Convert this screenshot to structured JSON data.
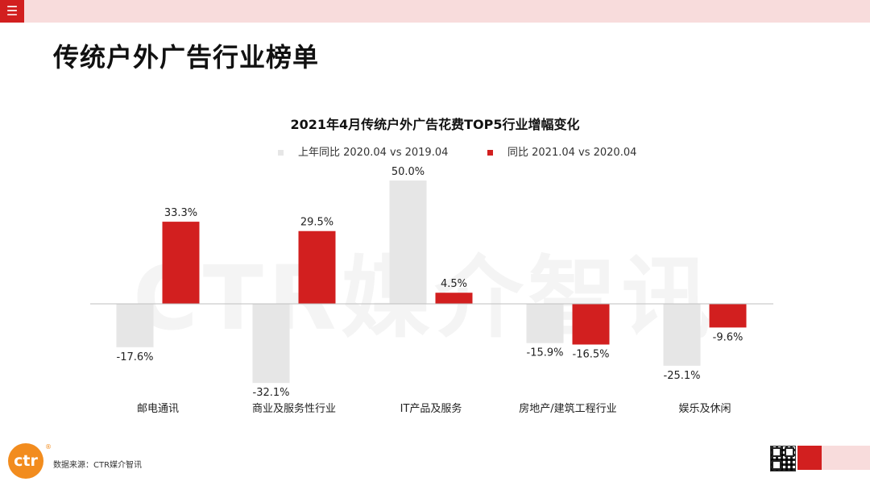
{
  "header": {
    "menu_icon": "menu-icon",
    "page_title": "传统户外广告行业榜单"
  },
  "watermark": "CTR媒介智讯",
  "colors": {
    "series1": "#e6e6e6",
    "series2": "#d21f1f",
    "accent": "#d21f1f",
    "band": "#f8dcdc",
    "logo": "#f28c1e"
  },
  "chart_data": {
    "type": "bar",
    "title": "2021年4月传统户外广告花费TOP5行业增幅变化",
    "categories": [
      "邮电通讯",
      "商业及服务性行业",
      "IT产品及服务",
      "房地产/建筑工程行业",
      "娱乐及休闲"
    ],
    "series": [
      {
        "name": "上年同比 2020.04 vs 2019.04",
        "values": [
          -17.6,
          -32.1,
          50.0,
          -15.9,
          -25.1
        ],
        "labels": [
          "-17.6%",
          "-32.1%",
          "50.0%",
          "-15.9%",
          "-25.1%"
        ]
      },
      {
        "name": "同比 2021.04 vs 2020.04",
        "values": [
          33.3,
          29.5,
          4.5,
          -16.5,
          -9.6
        ],
        "labels": [
          "33.3%",
          "29.5%",
          "4.5%",
          "-16.5%",
          "-9.6%"
        ]
      }
    ],
    "ylim": [
      -35,
      55
    ],
    "grid": false,
    "legend_position": "top-center"
  },
  "footer": {
    "logo_text": "ctr",
    "logo_reg": "®",
    "source": "数据来源：CTR媒介智讯",
    "qr_icon": "qr-code-icon"
  }
}
